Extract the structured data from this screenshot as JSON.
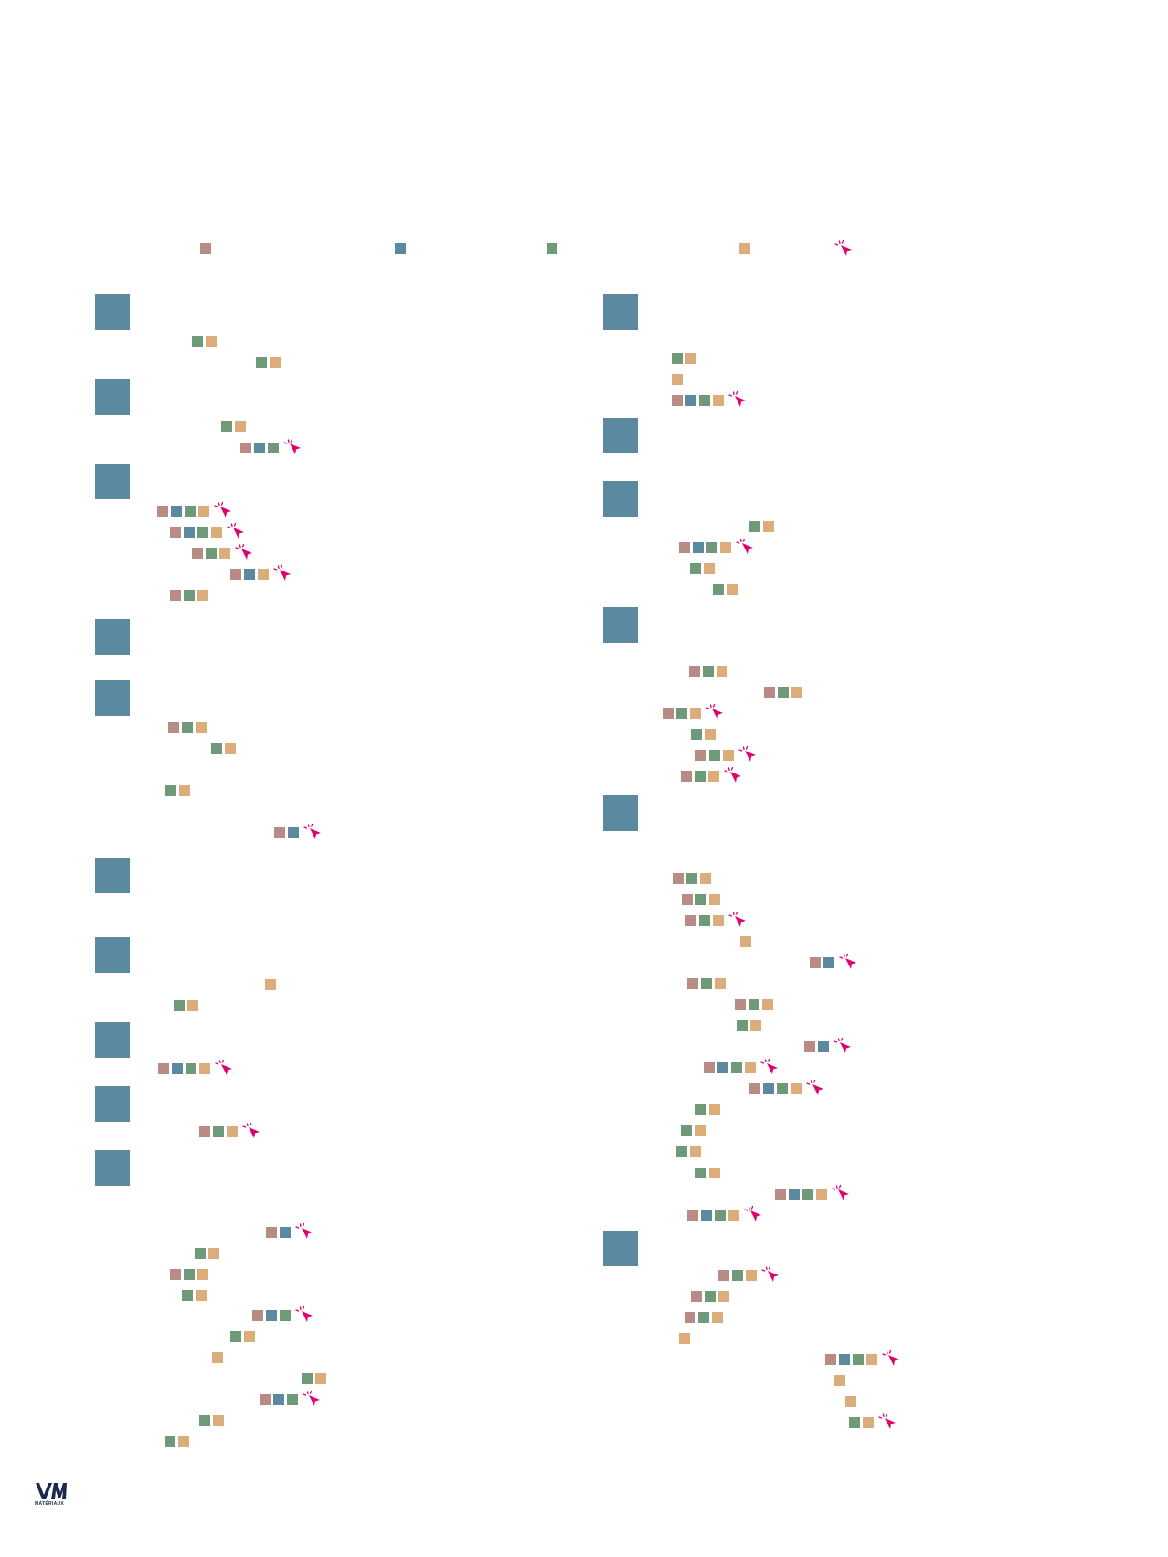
{
  "colors": {
    "rose": "#b88c84",
    "blue": "#5b8aa0",
    "green": "#6f9a7a",
    "sand": "#dcac7a",
    "cursor": "#e0006f",
    "header": "#5b8aa0",
    "logo": "#1b2a4a"
  },
  "legend": [
    "rose-square",
    "blue-square",
    "green-square",
    "sand-square",
    "click-cursor-icon"
  ],
  "logo": {
    "mark": "VM",
    "text": "MATÉRIAUX"
  },
  "columns": [
    {
      "sections": [
        {
          "rows": [
            [
              "green",
              "sand"
            ],
            [
              "green",
              "sand"
            ]
          ]
        },
        {
          "rows": [
            [
              "green",
              "sand"
            ],
            [
              "rose",
              "blue",
              "green",
              "cursor"
            ]
          ]
        },
        {
          "rows": [
            [
              "rose",
              "blue",
              "green",
              "sand",
              "cursor"
            ],
            [
              "rose",
              "blue",
              "green",
              "sand",
              "cursor"
            ],
            [
              "rose",
              "green",
              "sand",
              "cursor"
            ],
            [
              "rose",
              "blue",
              "sand",
              "cursor"
            ],
            [
              "rose",
              "green",
              "sand"
            ]
          ]
        },
        {
          "rows": []
        },
        {
          "rows": [
            [
              "rose",
              "green",
              "sand"
            ],
            [
              "green",
              "sand"
            ],
            [
              "green",
              "sand"
            ],
            [
              "rose",
              "blue",
              "cursor"
            ]
          ]
        },
        {
          "rows": []
        },
        {
          "rows": [
            [
              "sand"
            ],
            [
              "green",
              "sand"
            ]
          ]
        },
        {
          "rows": [
            [
              "rose",
              "blue",
              "green",
              "sand",
              "cursor"
            ]
          ]
        },
        {
          "rows": [
            [
              "rose",
              "green",
              "sand",
              "cursor"
            ]
          ]
        },
        {
          "rows": [
            [
              "rose",
              "blue",
              "cursor"
            ],
            [
              "green",
              "sand"
            ],
            [
              "rose",
              "green",
              "sand"
            ],
            [
              "green",
              "sand"
            ],
            [
              "rose",
              "blue",
              "green",
              "cursor"
            ],
            [
              "green",
              "sand"
            ],
            [
              "sand"
            ],
            [
              "green",
              "sand"
            ],
            [
              "rose",
              "blue",
              "green",
              "cursor"
            ],
            [
              "green",
              "sand"
            ],
            [
              "green",
              "sand"
            ]
          ]
        }
      ]
    },
    {
      "sections": [
        {
          "rows": [
            [
              "green",
              "sand"
            ],
            [
              "sand"
            ],
            [
              "rose",
              "blue",
              "green",
              "sand",
              "cursor"
            ]
          ]
        },
        {
          "rows": []
        },
        {
          "rows": [
            [
              "green",
              "sand"
            ],
            [
              "rose",
              "blue",
              "green",
              "sand",
              "cursor"
            ],
            [
              "green",
              "sand"
            ],
            [
              "green",
              "sand"
            ]
          ]
        },
        {
          "rows": [
            [
              "rose",
              "green",
              "sand"
            ],
            [
              "rose",
              "green",
              "sand"
            ],
            [
              "rose",
              "green",
              "sand",
              "cursor"
            ],
            [
              "green",
              "sand"
            ],
            [
              "rose",
              "green",
              "sand",
              "cursor"
            ],
            [
              "rose",
              "green",
              "sand",
              "cursor"
            ]
          ]
        },
        {
          "rows": [
            [
              "rose",
              "green",
              "sand"
            ],
            [
              "rose",
              "green",
              "sand"
            ],
            [
              "rose",
              "green",
              "sand",
              "cursor"
            ],
            [
              "sand"
            ],
            [
              "rose",
              "blue",
              "cursor"
            ],
            [
              "rose",
              "green",
              "sand"
            ],
            [
              "rose",
              "green",
              "sand"
            ],
            [
              "green",
              "sand"
            ],
            [
              "rose",
              "blue",
              "cursor"
            ],
            [
              "rose",
              "blue",
              "green",
              "sand",
              "cursor"
            ],
            [
              "rose",
              "blue",
              "green",
              "sand",
              "cursor"
            ],
            [
              "green",
              "sand"
            ],
            [
              "green",
              "sand"
            ],
            [
              "green",
              "sand"
            ],
            [
              "green",
              "sand"
            ],
            [
              "rose",
              "blue",
              "green",
              "sand",
              "cursor"
            ],
            [
              "rose",
              "blue",
              "green",
              "sand",
              "cursor"
            ]
          ]
        },
        {
          "rows": [
            [
              "rose",
              "green",
              "sand",
              "cursor"
            ],
            [
              "rose",
              "green",
              "sand"
            ],
            [
              "rose",
              "green",
              "sand"
            ],
            [
              "sand"
            ],
            [
              "rose",
              "blue",
              "green",
              "sand",
              "cursor"
            ],
            [
              "sand"
            ],
            [
              "sand"
            ],
            [
              "green",
              "sand",
              "cursor"
            ]
          ]
        }
      ]
    }
  ]
}
